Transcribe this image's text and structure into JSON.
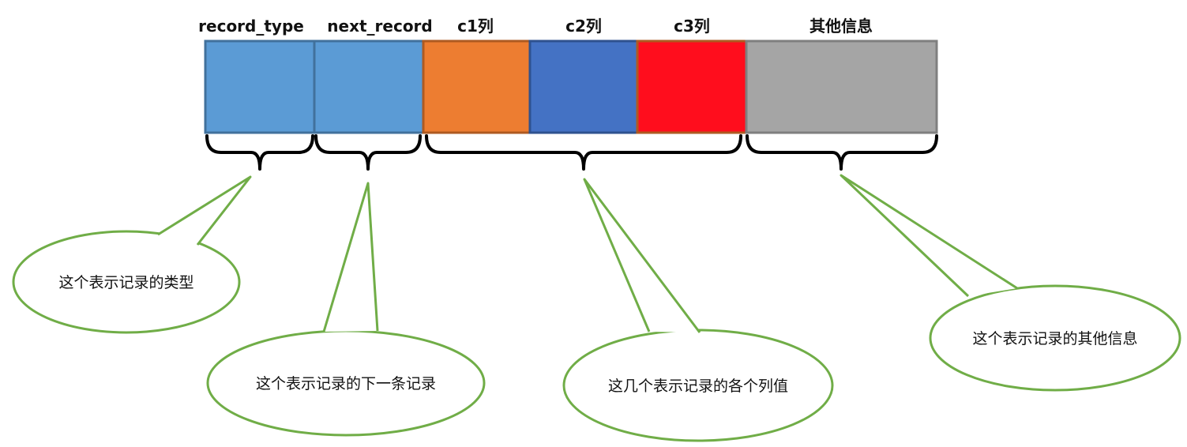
{
  "fields": [
    {
      "label": "record_type",
      "color": "#5B9BD5",
      "border": "#41719C"
    },
    {
      "label": "next_record",
      "color": "#5B9BD5",
      "border": "#41719C"
    },
    {
      "label": "c1列",
      "color": "#ED7D31",
      "border": "#AE5A21"
    },
    {
      "label": "c2列",
      "color": "#4472C4",
      "border": "#2F528F"
    },
    {
      "label": "c3列",
      "color": "#FF0D1D",
      "border": "#AE5A21"
    },
    {
      "label": "其他信息",
      "color": "#A5A5A5",
      "border": "#7F7F7F"
    }
  ],
  "callouts": [
    {
      "text": "这个表示记录的类型",
      "border_color": "#70AD47"
    },
    {
      "text": "这个表示记录的下一条记录",
      "border_color": "#70AD47"
    },
    {
      "text": "这几个表示记录的各个列值",
      "border_color": "#70AD47"
    },
    {
      "text": "这个表示记录的其他信息",
      "border_color": "#70AD47"
    }
  ]
}
